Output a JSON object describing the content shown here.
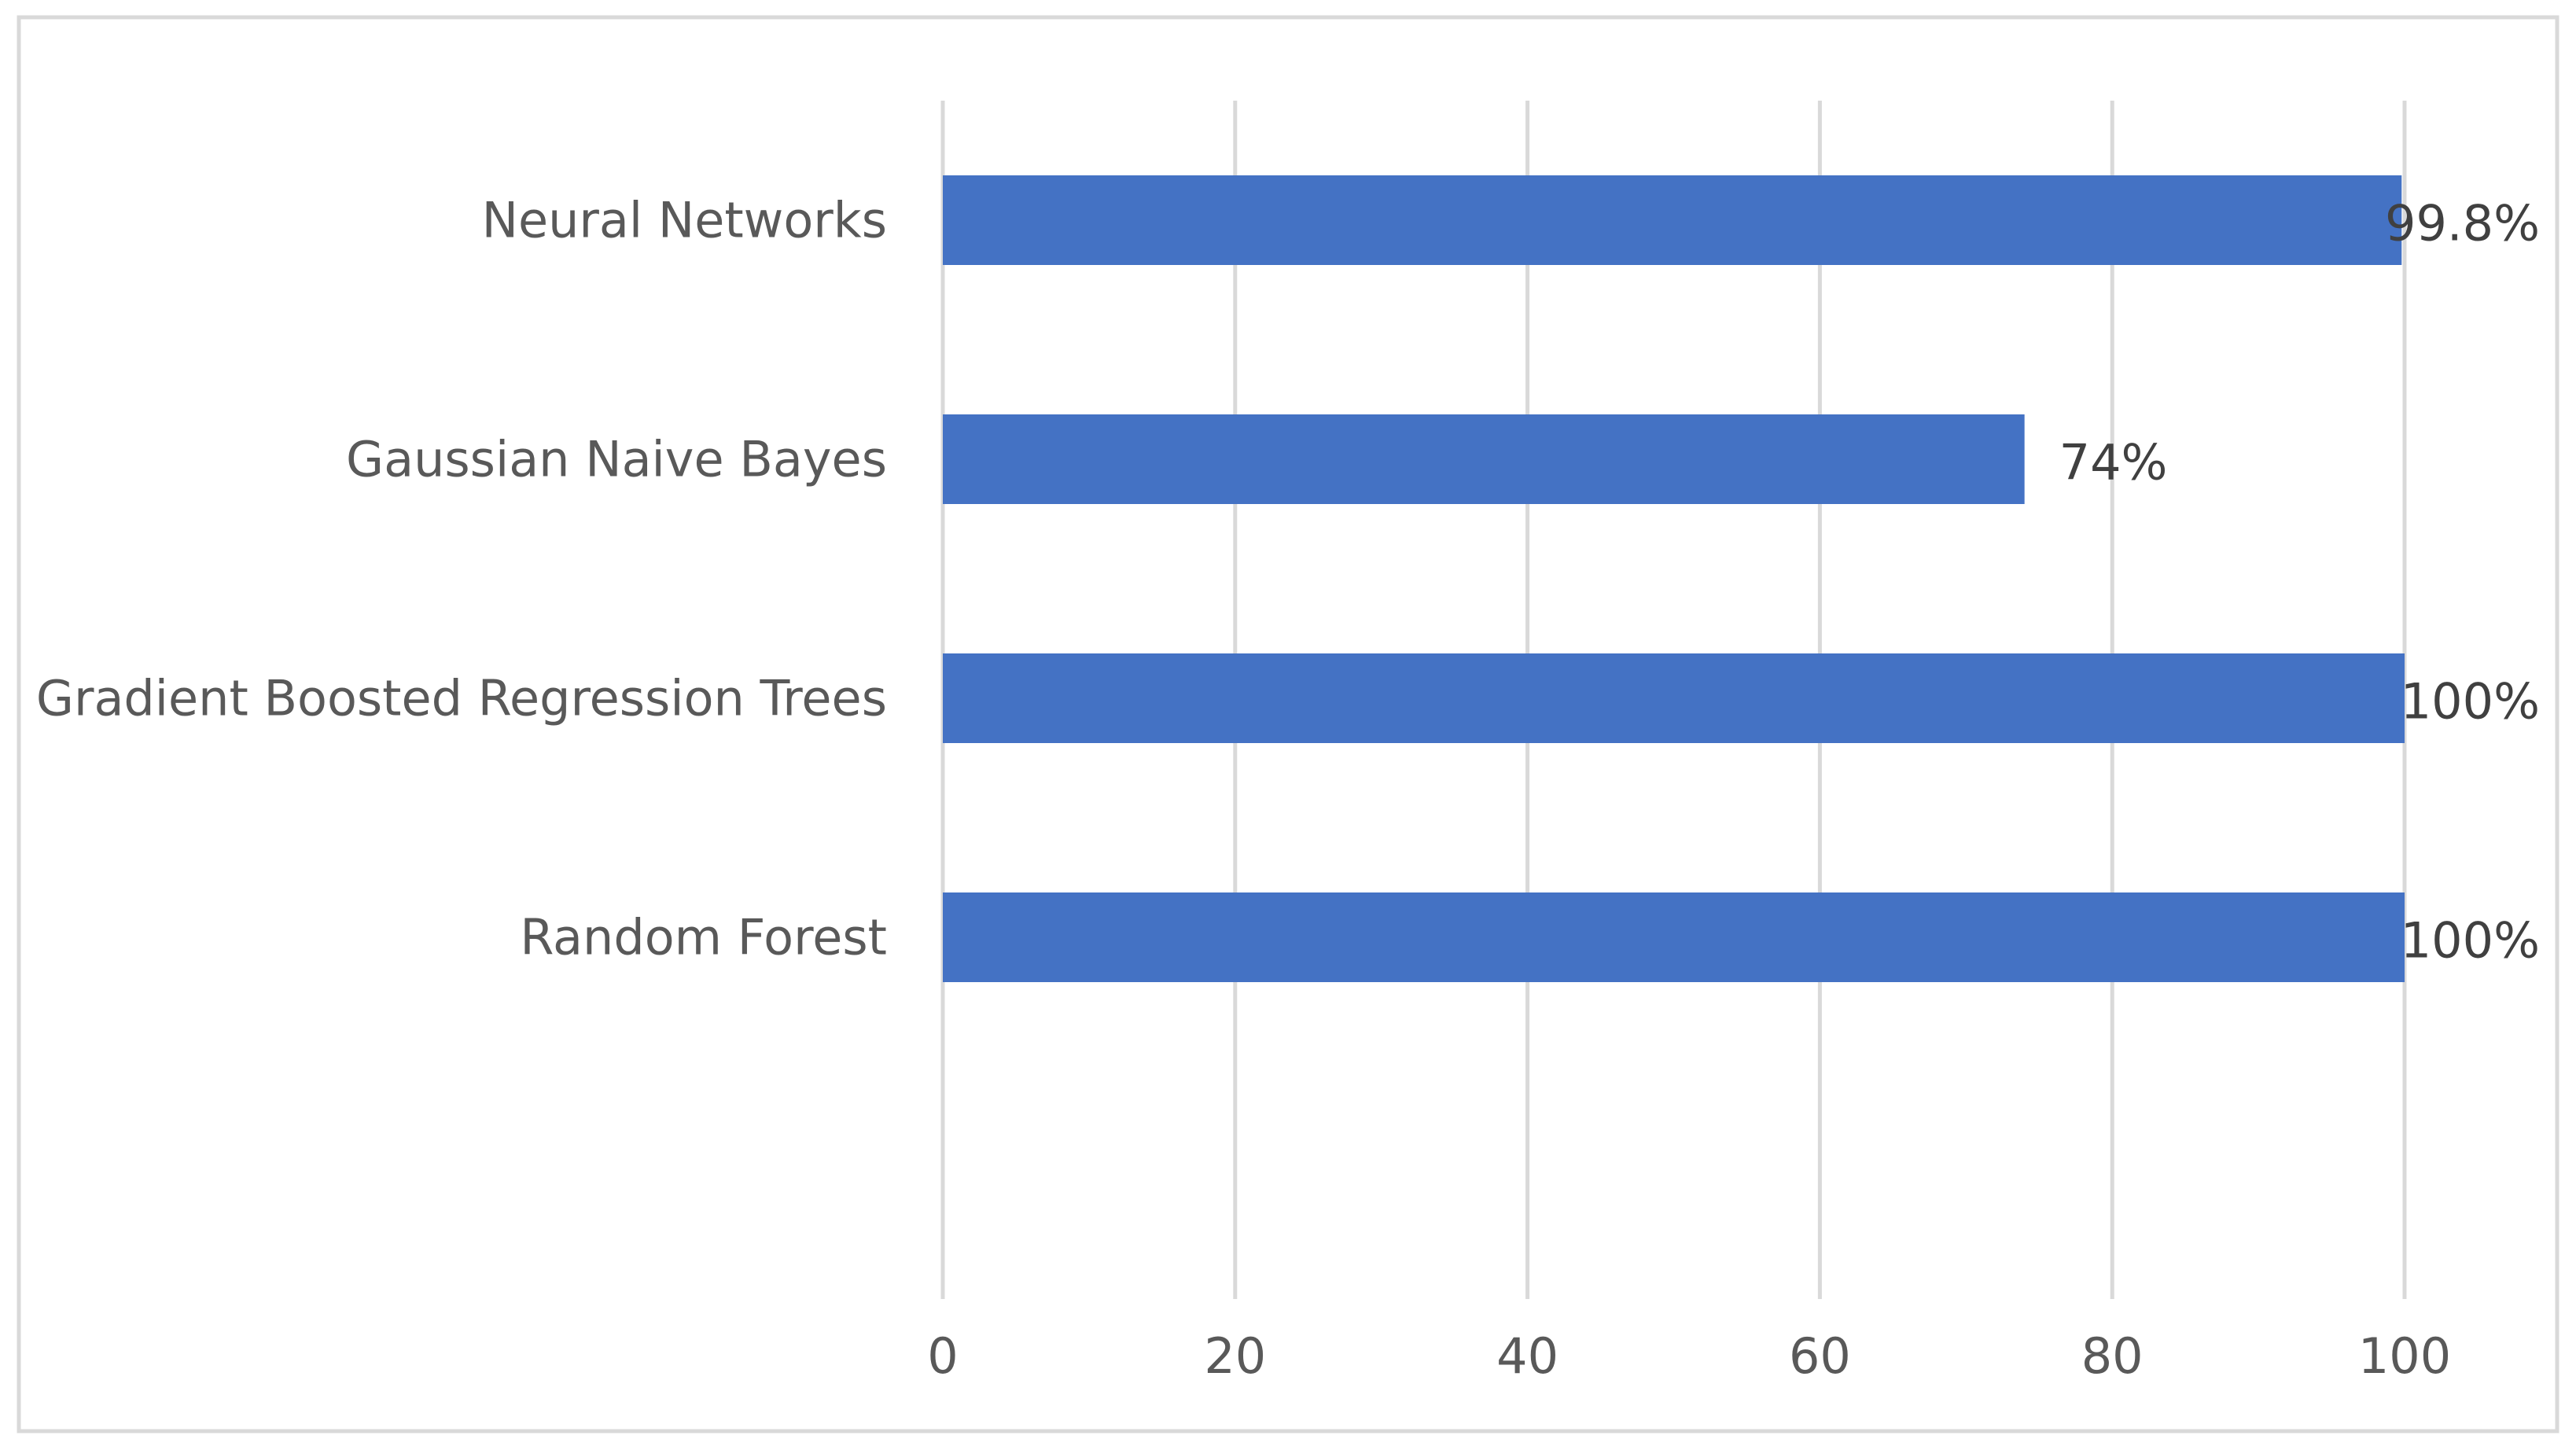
{
  "colors": {
    "bar": "#4472C4",
    "grid": "#D9D9D9",
    "border": "#D9D9D9",
    "category_text": "#595959",
    "tick_text": "#595959",
    "data_label_text": "#404040",
    "background": "#FFFFFF"
  },
  "chart_data": {
    "type": "bar",
    "orientation": "horizontal",
    "title": "",
    "xlabel": "",
    "ylabel": "",
    "xlim": [
      0,
      100
    ],
    "x_ticks": [
      0,
      20,
      40,
      60,
      80,
      100
    ],
    "x_tick_labels": [
      "0",
      "20",
      "40",
      "60",
      "80",
      "100"
    ],
    "categories": [
      "Neural Networks",
      "Gaussian Naive Bayes",
      "Gradient Boosted Regression Trees",
      "Random Forest"
    ],
    "values": [
      99.8,
      74,
      100,
      100
    ],
    "data_labels": [
      "99.8%",
      "74%",
      "100%",
      "100%"
    ],
    "grid": "vertical",
    "legend": "none"
  }
}
